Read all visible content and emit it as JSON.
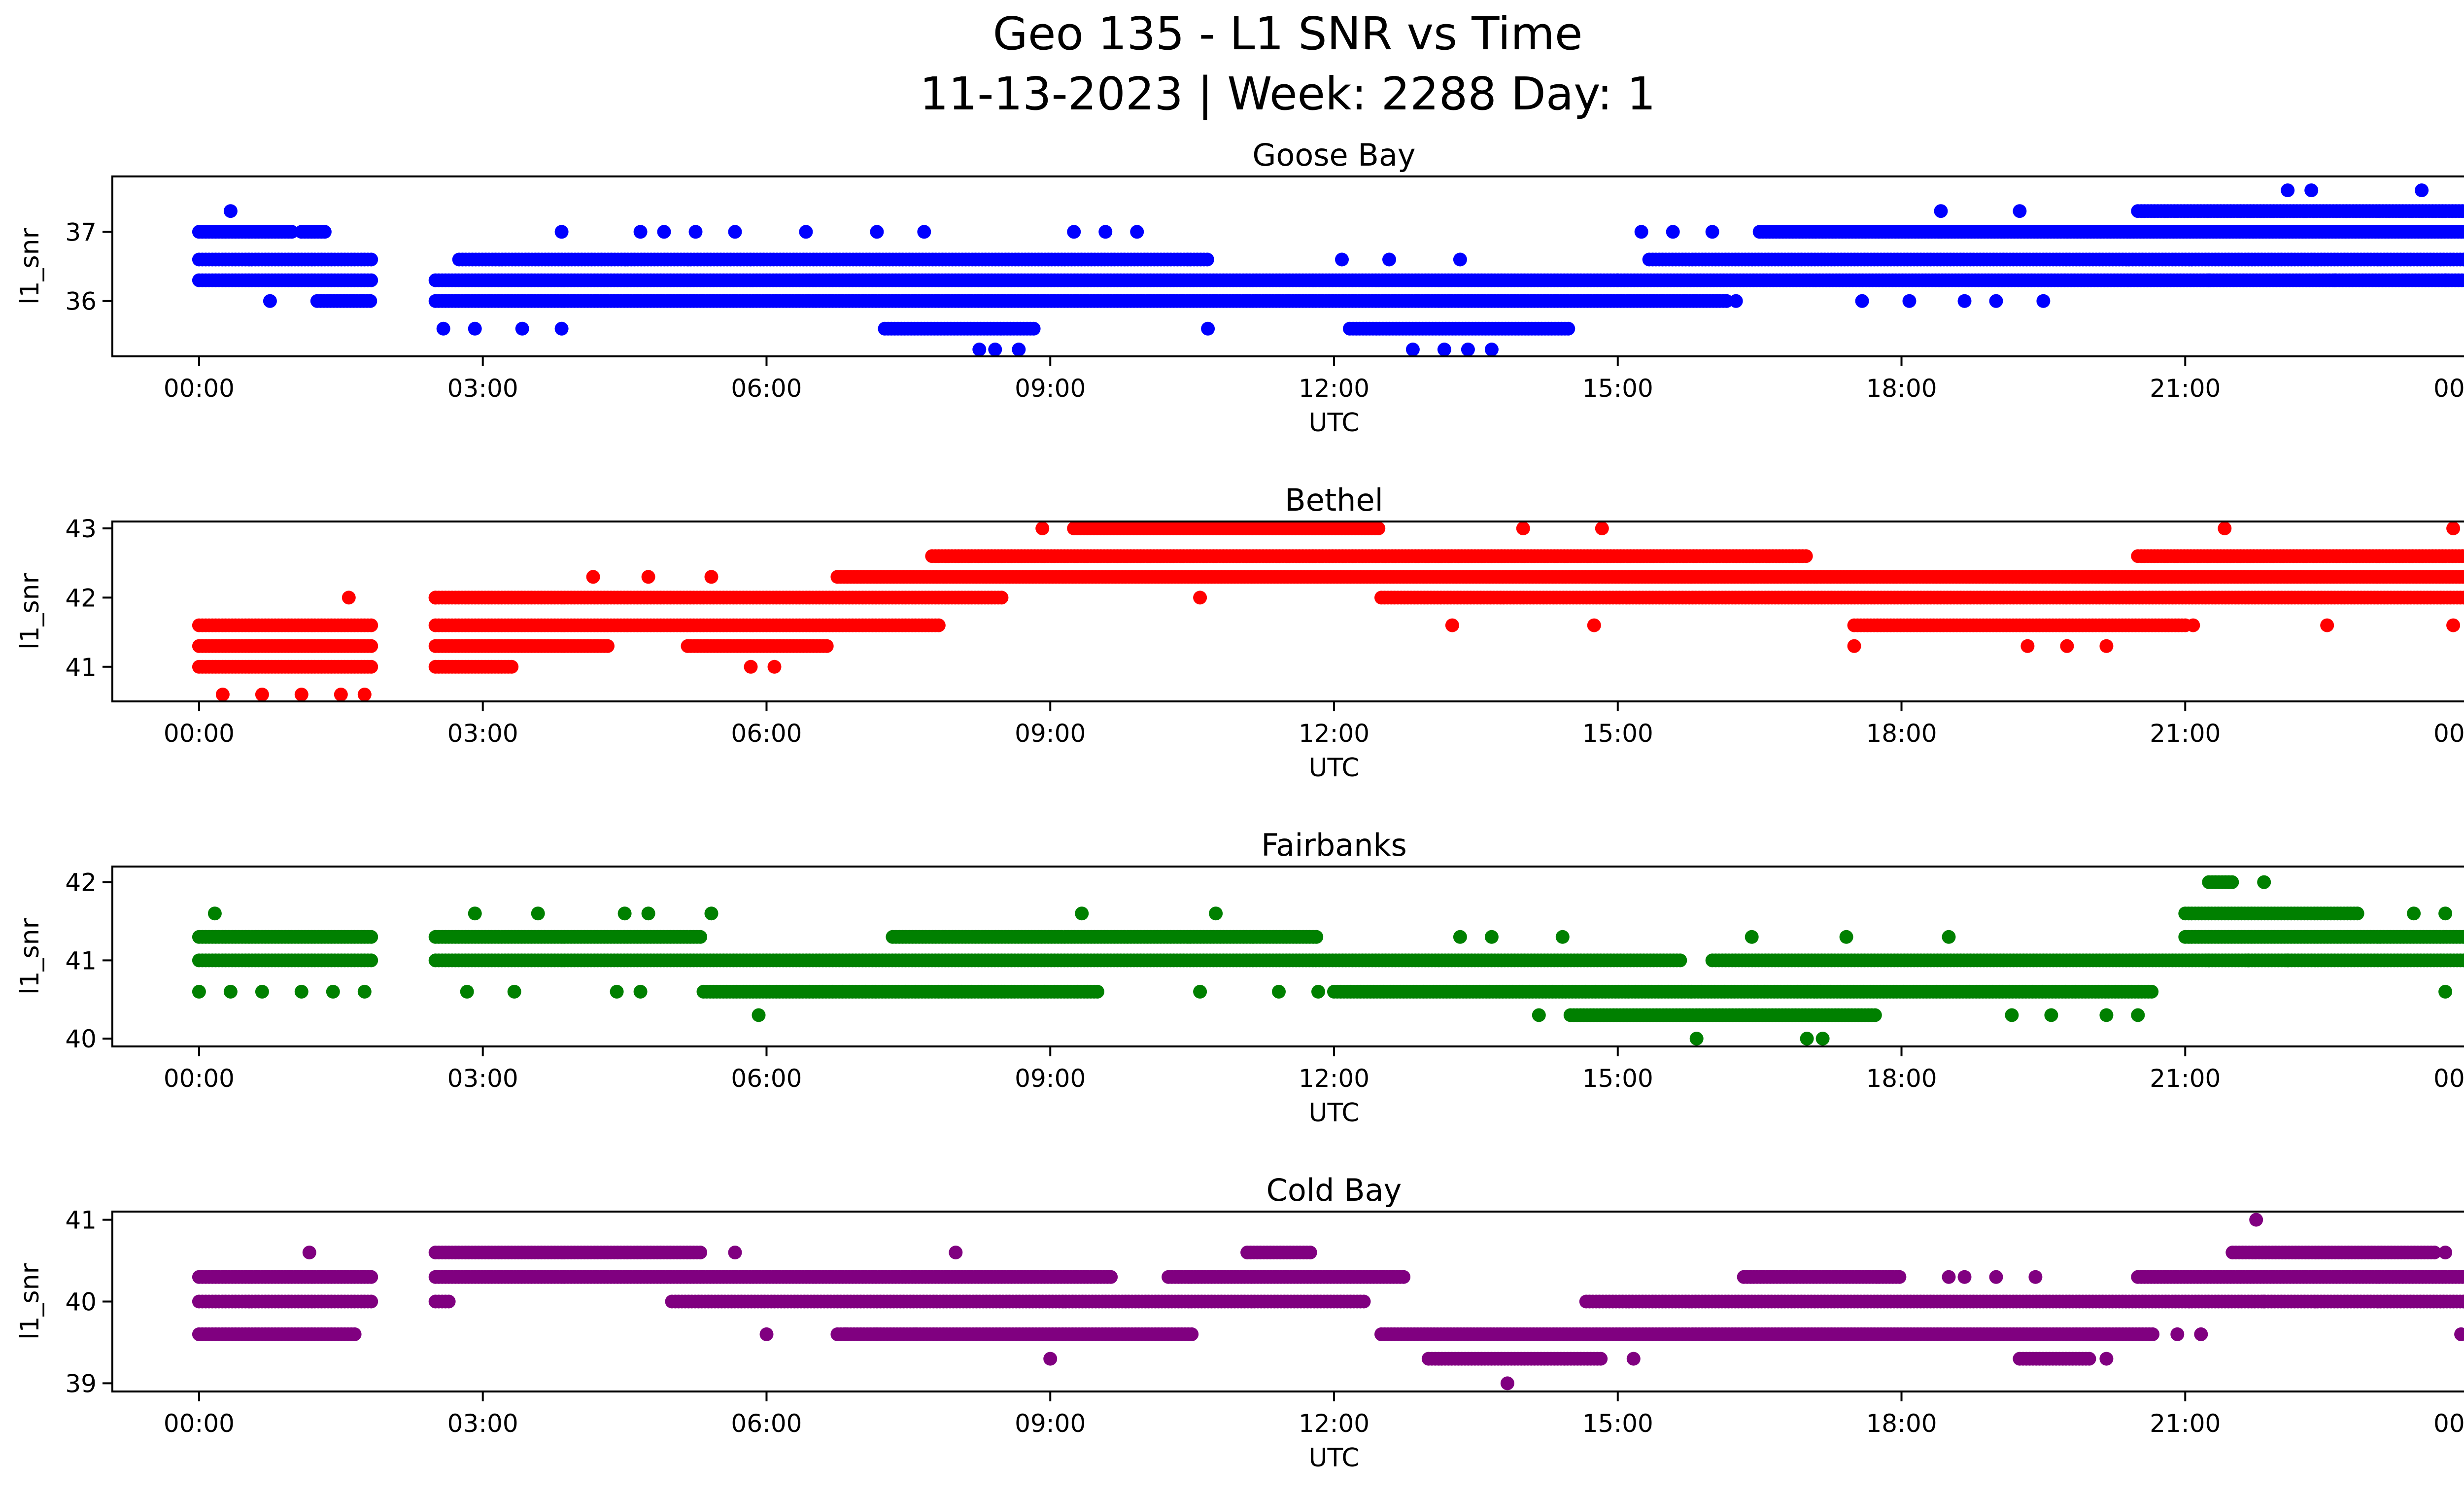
{
  "figure": {
    "title_line1": "Geo 135 - L1 SNR vs Time",
    "title_line2": "11-13-2023 | Week: 2288 Day: 1"
  },
  "chart_data": [
    {
      "type": "scatter",
      "title": "Goose Bay",
      "xlabel": "UTC",
      "ylabel": "l1_snr",
      "color": "#0000ff",
      "xlim": [
        "2023-11-12 23:05",
        "2023-11-14 00:55"
      ],
      "ylim": [
        35.2,
        37.8
      ],
      "x_ticks": [
        "00:00",
        "03:00",
        "06:00",
        "09:00",
        "12:00",
        "15:00",
        "18:00",
        "21:00",
        "00:00"
      ],
      "y_ticks": [
        36,
        37
      ],
      "bands": [
        {
          "y": 37.0,
          "segments": [
            [
              "00:00",
              "01:00"
            ],
            [
              "01:05",
              "01:20"
            ],
            [
              "16:30",
              "24:00"
            ]
          ]
        },
        {
          "y": 36.6,
          "segments": [
            [
              "00:00",
              "01:50"
            ],
            [
              "02:45",
              "10:40"
            ],
            [
              "15:20",
              "24:00"
            ]
          ]
        },
        {
          "y": 36.3,
          "segments": [
            [
              "00:00",
              "01:50"
            ],
            [
              "02:30",
              "15:00"
            ],
            [
              "15:00",
              "24:00"
            ]
          ]
        },
        {
          "y": 36.0,
          "segments": [
            [
              "01:15",
              "01:50"
            ],
            [
              "02:30",
              "16:10"
            ]
          ]
        },
        {
          "y": 37.3,
          "segments": [
            [
              "20:30",
              "24:00"
            ]
          ]
        },
        {
          "y": 35.6,
          "segments": [
            [
              "07:15",
              "08:50"
            ],
            [
              "12:10",
              "14:30"
            ]
          ]
        }
      ],
      "points": [
        [
          "00:20",
          37.3
        ],
        [
          "00:45",
          36.0
        ],
        [
          "02:35",
          35.6
        ],
        [
          "02:55",
          35.6
        ],
        [
          "03:25",
          35.6
        ],
        [
          "03:50",
          35.6
        ],
        [
          "03:50",
          37.0
        ],
        [
          "04:40",
          37.0
        ],
        [
          "04:55",
          37.0
        ],
        [
          "05:15",
          37.0
        ],
        [
          "05:40",
          37.0
        ],
        [
          "06:25",
          37.0
        ],
        [
          "07:10",
          37.0
        ],
        [
          "07:40",
          37.0
        ],
        [
          "08:15",
          35.3
        ],
        [
          "08:25",
          35.3
        ],
        [
          "08:40",
          35.3
        ],
        [
          "09:15",
          37.0
        ],
        [
          "09:35",
          37.0
        ],
        [
          "09:55",
          37.0
        ],
        [
          "10:40",
          35.6
        ],
        [
          "12:05",
          36.6
        ],
        [
          "12:35",
          36.6
        ],
        [
          "12:50",
          35.3
        ],
        [
          "13:10",
          35.3
        ],
        [
          "13:25",
          35.3
        ],
        [
          "13:40",
          35.3
        ],
        [
          "13:20",
          36.6
        ],
        [
          "15:15",
          37.0
        ],
        [
          "15:35",
          37.0
        ],
        [
          "16:00",
          37.0
        ],
        [
          "16:15",
          36.0
        ],
        [
          "17:35",
          36.0
        ],
        [
          "18:05",
          36.0
        ],
        [
          "18:25",
          37.3
        ],
        [
          "18:40",
          36.0
        ],
        [
          "19:00",
          36.0
        ],
        [
          "19:15",
          37.3
        ],
        [
          "19:30",
          36.0
        ],
        [
          "21:15",
          36.3
        ],
        [
          "22:05",
          37.6
        ],
        [
          "22:20",
          37.6
        ],
        [
          "22:35",
          36.3
        ],
        [
          "23:30",
          37.6
        ],
        [
          "23:45",
          36.3
        ],
        [
          "24:00",
          36.3
        ]
      ]
    },
    {
      "type": "scatter",
      "title": "Bethel",
      "xlabel": "UTC",
      "ylabel": "l1_snr",
      "color": "#ff0000",
      "xlim": [
        "2023-11-12 23:05",
        "2023-11-14 00:55"
      ],
      "ylim": [
        40.5,
        43.1
      ],
      "x_ticks": [
        "00:00",
        "03:00",
        "06:00",
        "09:00",
        "12:00",
        "15:00",
        "18:00",
        "21:00",
        "00:00"
      ],
      "y_ticks": [
        41,
        42,
        43
      ],
      "bands": [
        {
          "y": 41.6,
          "segments": [
            [
              "00:00",
              "01:50"
            ],
            [
              "02:30",
              "07:50"
            ]
          ]
        },
        {
          "y": 41.3,
          "segments": [
            [
              "00:00",
              "01:50"
            ],
            [
              "02:30",
              "04:20"
            ],
            [
              "05:10",
              "06:40"
            ]
          ]
        },
        {
          "y": 41.0,
          "segments": [
            [
              "00:00",
              "01:50"
            ],
            [
              "02:30",
              "03:20"
            ]
          ]
        },
        {
          "y": 42.0,
          "segments": [
            [
              "02:30",
              "08:30"
            ],
            [
              "12:30",
              "24:00"
            ]
          ]
        },
        {
          "y": 42.3,
          "segments": [
            [
              "06:45",
              "24:00"
            ]
          ]
        },
        {
          "y": 42.6,
          "segments": [
            [
              "07:45",
              "17:00"
            ],
            [
              "20:30",
              "24:00"
            ]
          ]
        },
        {
          "y": 43.0,
          "segments": [
            [
              "09:15",
              "12:30"
            ]
          ]
        },
        {
          "y": 41.6,
          "segments": [
            [
              "17:30",
              "21:00"
            ]
          ]
        }
      ],
      "points": [
        [
          "00:15",
          40.6
        ],
        [
          "00:40",
          40.6
        ],
        [
          "01:05",
          40.6
        ],
        [
          "01:30",
          40.6
        ],
        [
          "01:45",
          40.6
        ],
        [
          "01:35",
          42.0
        ],
        [
          "02:30",
          42.0
        ],
        [
          "04:10",
          42.3
        ],
        [
          "04:45",
          42.3
        ],
        [
          "05:25",
          42.3
        ],
        [
          "05:50",
          41.0
        ],
        [
          "06:05",
          41.0
        ],
        [
          "08:55",
          43.0
        ],
        [
          "10:35",
          42.0
        ],
        [
          "13:15",
          41.6
        ],
        [
          "14:00",
          43.0
        ],
        [
          "14:45",
          41.6
        ],
        [
          "14:50",
          43.0
        ],
        [
          "17:30",
          41.3
        ],
        [
          "19:20",
          41.3
        ],
        [
          "19:45",
          41.3
        ],
        [
          "20:10",
          41.3
        ],
        [
          "21:25",
          43.0
        ],
        [
          "23:50",
          43.0
        ],
        [
          "23:50",
          41.6
        ],
        [
          "22:30",
          41.6
        ],
        [
          "21:05",
          41.6
        ]
      ]
    },
    {
      "type": "scatter",
      "title": "Fairbanks",
      "xlabel": "UTC",
      "ylabel": "l1_snr",
      "color": "#008000",
      "xlim": [
        "2023-11-12 23:05",
        "2023-11-14 00:55"
      ],
      "ylim": [
        39.9,
        42.2
      ],
      "x_ticks": [
        "00:00",
        "03:00",
        "06:00",
        "09:00",
        "12:00",
        "15:00",
        "18:00",
        "21:00",
        "00:00"
      ],
      "y_ticks": [
        40,
        41,
        42
      ],
      "bands": [
        {
          "y": 41.3,
          "segments": [
            [
              "00:00",
              "01:50"
            ],
            [
              "02:30",
              "05:20"
            ],
            [
              "07:20",
              "11:50"
            ],
            [
              "21:00",
              "24:00"
            ]
          ]
        },
        {
          "y": 41.0,
          "segments": [
            [
              "00:00",
              "01:50"
            ],
            [
              "02:30",
              "15:40"
            ],
            [
              "16:00",
              "24:00"
            ]
          ]
        },
        {
          "y": 40.6,
          "segments": [
            [
              "05:20",
              "09:30"
            ],
            [
              "12:00",
              "20:40"
            ]
          ]
        },
        {
          "y": 40.3,
          "segments": [
            [
              "14:30",
              "17:45"
            ]
          ]
        },
        {
          "y": 41.6,
          "segments": [
            [
              "21:00",
              "22:50"
            ]
          ]
        },
        {
          "y": 42.0,
          "segments": [
            [
              "21:15",
              "21:30"
            ]
          ]
        }
      ],
      "points": [
        [
          "00:10",
          41.6
        ],
        [
          "00:00",
          40.6
        ],
        [
          "00:20",
          40.6
        ],
        [
          "00:40",
          40.6
        ],
        [
          "01:05",
          40.6
        ],
        [
          "01:25",
          40.6
        ],
        [
          "01:45",
          40.6
        ],
        [
          "02:55",
          41.6
        ],
        [
          "03:35",
          41.6
        ],
        [
          "04:30",
          41.6
        ],
        [
          "04:45",
          41.6
        ],
        [
          "05:25",
          41.6
        ],
        [
          "02:50",
          40.6
        ],
        [
          "03:20",
          40.6
        ],
        [
          "04:25",
          40.6
        ],
        [
          "04:40",
          40.6
        ],
        [
          "05:55",
          40.3
        ],
        [
          "09:20",
          41.6
        ],
        [
          "10:45",
          41.6
        ],
        [
          "10:35",
          40.6
        ],
        [
          "11:25",
          40.6
        ],
        [
          "11:50",
          40.6
        ],
        [
          "13:20",
          41.3
        ],
        [
          "13:40",
          41.3
        ],
        [
          "14:10",
          40.3
        ],
        [
          "14:25",
          41.3
        ],
        [
          "15:50",
          40.0
        ],
        [
          "16:25",
          41.3
        ],
        [
          "17:00",
          40.0
        ],
        [
          "17:10",
          40.0
        ],
        [
          "17:25",
          41.3
        ],
        [
          "18:30",
          41.3
        ],
        [
          "19:10",
          40.3
        ],
        [
          "19:35",
          40.3
        ],
        [
          "20:10",
          40.3
        ],
        [
          "20:30",
          40.3
        ],
        [
          "21:50",
          42.0
        ],
        [
          "23:25",
          41.6
        ],
        [
          "23:45",
          41.6
        ],
        [
          "23:45",
          40.6
        ],
        [
          "21:15",
          41.0
        ],
        [
          "21:40",
          41.0
        ],
        [
          "22:05",
          41.0
        ]
      ]
    },
    {
      "type": "scatter",
      "title": "Cold Bay",
      "xlabel": "UTC",
      "ylabel": "l1_snr",
      "color": "#800080",
      "xlim": [
        "2023-11-12 23:05",
        "2023-11-14 00:55"
      ],
      "ylim": [
        38.9,
        41.1
      ],
      "x_ticks": [
        "00:00",
        "03:00",
        "06:00",
        "09:00",
        "12:00",
        "15:00",
        "18:00",
        "21:00",
        "00:00"
      ],
      "y_ticks": [
        39,
        40,
        41
      ],
      "bands": [
        {
          "y": 40.3,
          "segments": [
            [
              "00:00",
              "01:50"
            ],
            [
              "02:30",
              "09:40"
            ],
            [
              "10:15",
              "12:45"
            ],
            [
              "16:20",
              "18:00"
            ],
            [
              "20:30",
              "24:00"
            ]
          ]
        },
        {
          "y": 40.0,
          "segments": [
            [
              "00:00",
              "01:50"
            ],
            [
              "02:30",
              "02:40"
            ],
            [
              "05:00",
              "12:20"
            ],
            [
              "14:40",
              "24:00"
            ]
          ]
        },
        {
          "y": 39.6,
          "segments": [
            [
              "00:00",
              "01:40"
            ],
            [
              "06:45",
              "10:30"
            ],
            [
              "12:30",
              "20:40"
            ]
          ]
        },
        {
          "y": 40.6,
          "segments": [
            [
              "02:30",
              "05:20"
            ],
            [
              "11:05",
              "11:45"
            ],
            [
              "21:30",
              "23:40"
            ]
          ]
        },
        {
          "y": 39.3,
          "segments": [
            [
              "13:00",
              "14:50"
            ],
            [
              "19:15",
              "20:00"
            ]
          ]
        }
      ],
      "points": [
        [
          "01:10",
          40.6
        ],
        [
          "05:40",
          40.6
        ],
        [
          "08:00",
          40.6
        ],
        [
          "09:00",
          39.3
        ],
        [
          "06:00",
          39.6
        ],
        [
          "06:50",
          39.6
        ],
        [
          "07:10",
          39.6
        ],
        [
          "07:35",
          39.6
        ],
        [
          "13:50",
          39.0
        ],
        [
          "15:10",
          39.3
        ],
        [
          "18:30",
          40.3
        ],
        [
          "18:40",
          40.3
        ],
        [
          "19:00",
          40.3
        ],
        [
          "19:25",
          40.3
        ],
        [
          "20:10",
          39.3
        ],
        [
          "20:55",
          39.6
        ],
        [
          "21:10",
          39.6
        ],
        [
          "21:45",
          41.0
        ],
        [
          "21:50",
          40.0
        ],
        [
          "23:45",
          40.6
        ],
        [
          "23:55",
          39.6
        ]
      ]
    }
  ]
}
